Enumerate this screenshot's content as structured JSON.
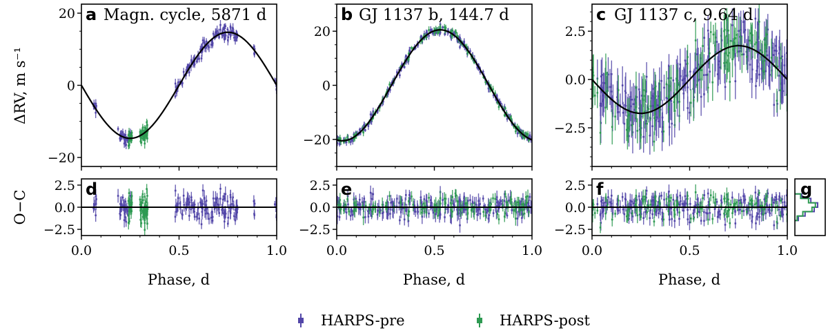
{
  "colors": {
    "pre": "#5246a8",
    "post": "#2e9a52",
    "model": "#000000"
  },
  "legend": {
    "entries": [
      {
        "label": "HARPS-pre",
        "color": "#5246a8"
      },
      {
        "label": "HARPS-post",
        "color": "#2e9a52"
      }
    ]
  },
  "labels": {
    "main_ylabel": "ΔRV, m s⁻¹",
    "oc_ylabel": "O−C",
    "xlabel": "Phase, d"
  },
  "chart_data": [
    {
      "id": "a",
      "letter": "a",
      "title": "Magn. cycle, 5871 d",
      "type": "scatter",
      "xlim": [
        0,
        1
      ],
      "ylim": [
        -22.5,
        22.5
      ],
      "xticks": [
        0.0,
        0.5,
        1.0
      ],
      "yticks": [
        -20,
        0,
        20
      ],
      "model": {
        "kind": "sine",
        "amplitude": 14.7,
        "phase_offset": 0
      },
      "clusters_pre": [
        [
          0.06,
          0.08
        ],
        [
          0.18,
          0.26
        ],
        [
          0.48,
          0.8
        ],
        [
          0.88,
          0.89
        ],
        [
          0.99,
          1.0
        ]
      ],
      "clusters_post": [
        [
          0.24,
          0.26
        ],
        [
          0.3,
          0.34
        ]
      ],
      "noise": 1.3
    },
    {
      "id": "b",
      "letter": "b",
      "title": "GJ 1137 b, 144.7 d",
      "type": "scatter",
      "xlim": [
        0,
        1
      ],
      "ylim": [
        -30,
        30
      ],
      "xticks": [
        0.0,
        0.5,
        1.0
      ],
      "yticks": [
        -20,
        0,
        20
      ],
      "model": {
        "kind": "sine",
        "amplitude": 20.5,
        "phase_offset": 0.22
      },
      "clusters_pre": [
        [
          0.0,
          1.0
        ]
      ],
      "clusters_post": [
        [
          0.0,
          1.0
        ]
      ],
      "noise": 0.9
    },
    {
      "id": "c",
      "letter": "c",
      "title": "GJ 1137 c, 9.64 d",
      "type": "scatter",
      "xlim": [
        0,
        1
      ],
      "ylim": [
        -4.5,
        3.9
      ],
      "xticks": [
        0.0,
        0.5,
        1.0
      ],
      "yticks": [
        -2.5,
        0.0,
        2.5
      ],
      "model": {
        "kind": "sine",
        "amplitude": 1.75,
        "phase_offset": 0
      },
      "clusters_pre": [
        [
          0.0,
          1.0
        ]
      ],
      "clusters_post": [
        [
          0.0,
          1.0
        ]
      ],
      "noise": 0.9
    },
    {
      "id": "d",
      "letter": "d",
      "type": "scatter",
      "residuals_of": "a",
      "xlim": [
        0,
        1
      ],
      "ylim": [
        -3.2,
        3.2
      ],
      "yticks": [
        -2.5,
        0.0,
        2.5
      ]
    },
    {
      "id": "e",
      "letter": "e",
      "type": "scatter",
      "residuals_of": "b",
      "xlim": [
        0,
        1
      ],
      "ylim": [
        -3.2,
        3.2
      ],
      "yticks": [
        -2.5,
        0.0,
        2.5
      ]
    },
    {
      "id": "f",
      "letter": "f",
      "type": "scatter",
      "residuals_of": "c",
      "xlim": [
        0,
        1
      ],
      "ylim": [
        -3.2,
        3.2
      ],
      "yticks": [
        -2.5,
        0.0,
        2.5
      ]
    },
    {
      "id": "g",
      "letter": "g",
      "type": "histogram",
      "description_of": "O−C residual distribution",
      "ylim": [
        -3.2,
        3.2
      ],
      "bins": [
        -1.5,
        -1.0,
        -0.5,
        0.0,
        0.5,
        1.0,
        1.5
      ],
      "pre_counts": [
        0.15,
        0.45,
        0.85,
        1.0,
        0.7,
        0.3
      ],
      "post_counts": [
        0.1,
        0.35,
        0.75,
        0.9,
        0.6,
        0.25
      ]
    }
  ]
}
